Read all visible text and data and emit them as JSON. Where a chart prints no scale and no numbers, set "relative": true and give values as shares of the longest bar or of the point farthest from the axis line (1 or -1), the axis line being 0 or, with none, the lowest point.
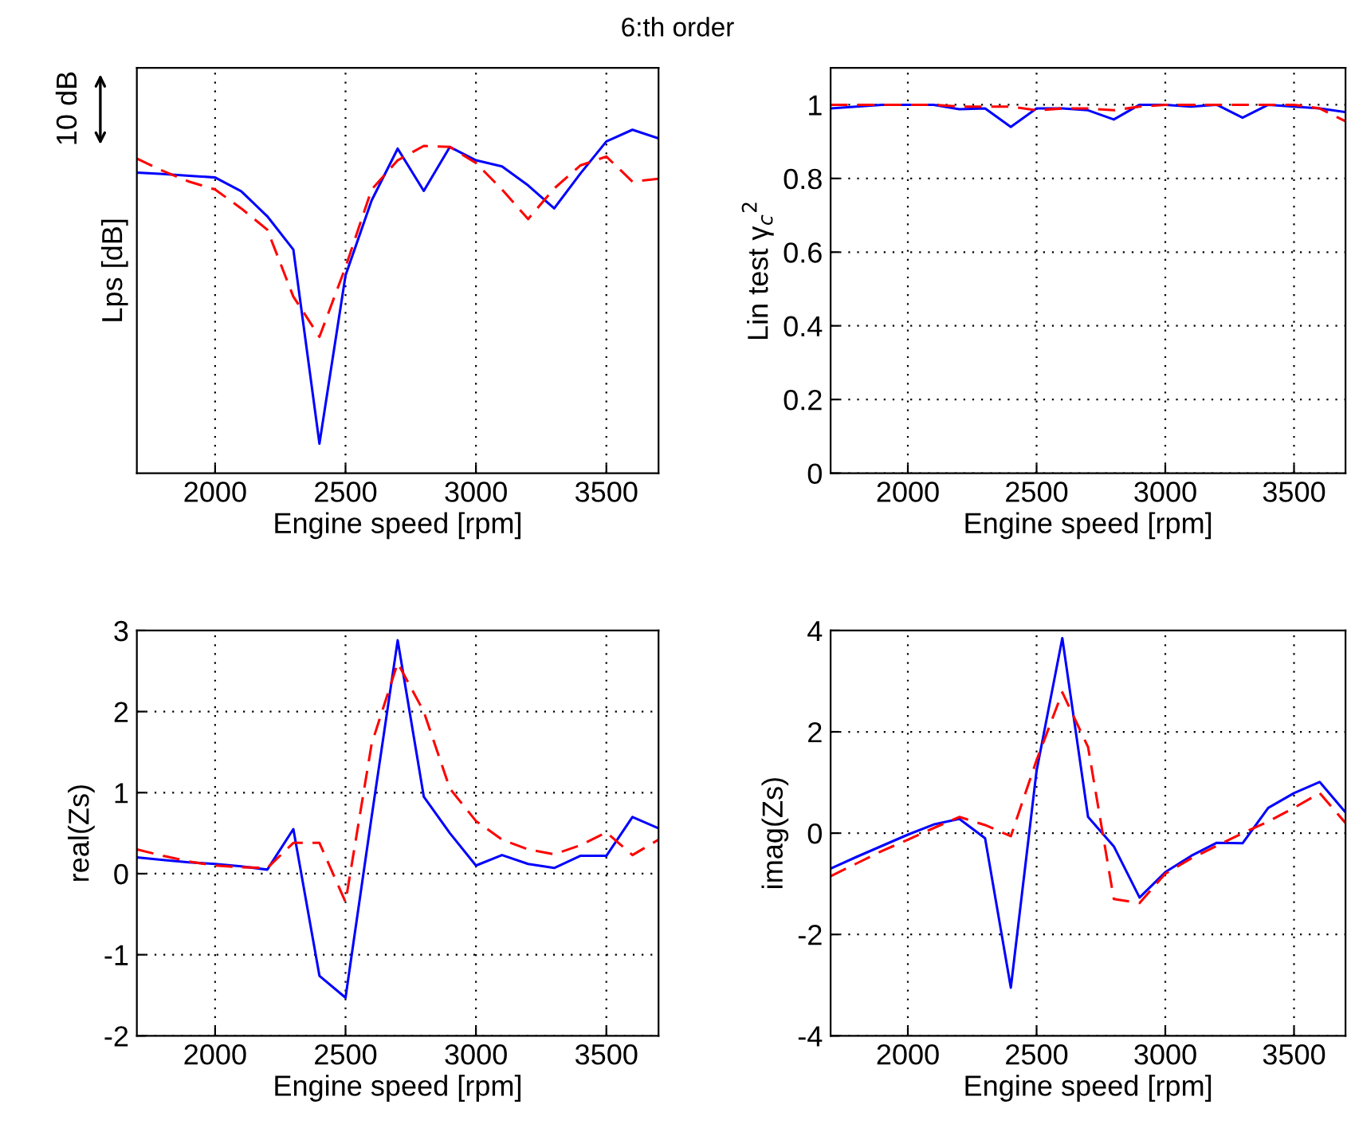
{
  "chart_data": [
    {
      "type": "line",
      "title": "6:th order",
      "relative": true,
      "xlabel": "Engine speed [rpm]",
      "ylabel": "Lps [dB]",
      "annotations": [
        "10 dB"
      ],
      "x": [
        1700,
        1800,
        1900,
        2000,
        2100,
        2200,
        2300,
        2400,
        2500,
        2600,
        2700,
        2800,
        2900,
        3000,
        3100,
        3200,
        3300,
        3400,
        3500,
        3600,
        3700
      ],
      "xlim": [
        1700,
        3700
      ],
      "xticks": [
        2000,
        2500,
        3000,
        3500
      ],
      "grid": "x",
      "series": [
        {
          "color": "#0000ff",
          "line_style": "solid",
          "values": [
            0.875,
            0.871,
            0.866,
            0.861,
            0.821,
            0.748,
            0.651,
            0.086,
            0.576,
            0.794,
            0.945,
            0.822,
            0.95,
            0.911,
            0.893,
            0.838,
            0.771,
            0.872,
            0.966,
            1,
            0.975
          ]
        },
        {
          "color": "#ff0000",
          "line_style": "dashed",
          "values": [
            0.916,
            0.88,
            0.849,
            0.826,
            0.771,
            0.709,
            0.514,
            0.397,
            0.6,
            0.826,
            0.911,
            0.953,
            0.95,
            0.903,
            0.826,
            0.74,
            0.829,
            0.896,
            0.922,
            0.849,
            0.857
          ]
        }
      ]
    },
    {
      "type": "line",
      "xlabel": "Engine speed [rpm]",
      "ylabel": "Lin test γ$_{c}$$^{2}$",
      "x": [
        1700,
        1800,
        1900,
        2000,
        2100,
        2200,
        2300,
        2400,
        2500,
        2600,
        2700,
        2800,
        2900,
        3000,
        3100,
        3200,
        3300,
        3400,
        3500,
        3600,
        3700
      ],
      "xlim": [
        1700,
        3700
      ],
      "xticks": [
        2000,
        2500,
        3000,
        3500
      ],
      "ylim": [
        0,
        1.1
      ],
      "yticks": [
        0,
        0.2,
        0.4,
        0.6,
        0.8,
        1
      ],
      "grid": true,
      "series": [
        {
          "color": "#0000ff",
          "line_style": "solid",
          "values": [
            0.99,
            0.995,
            1,
            1,
            1,
            0.988,
            0.99,
            0.94,
            0.99,
            0.99,
            0.985,
            0.96,
            1,
            1,
            0.995,
            1,
            0.965,
            1,
            0.995,
            0.99,
            0.98
          ]
        },
        {
          "color": "#ff0000",
          "line_style": "dashed",
          "values": [
            1,
            1,
            1,
            1,
            1,
            0.995,
            0.995,
            0.995,
            0.985,
            0.99,
            0.99,
            0.985,
            0.995,
            1,
            1,
            1,
            1,
            1,
            1,
            0.99,
            0.955
          ]
        }
      ]
    },
    {
      "type": "line",
      "xlabel": "Engine speed [rpm]",
      "ylabel": "real(Zs)",
      "x": [
        1700,
        1800,
        1900,
        2000,
        2100,
        2200,
        2300,
        2400,
        2500,
        2600,
        2700,
        2800,
        2900,
        3000,
        3100,
        3200,
        3300,
        3400,
        3500,
        3600,
        3700
      ],
      "xlim": [
        1700,
        3700
      ],
      "xticks": [
        2000,
        2500,
        3000,
        3500
      ],
      "ylim": [
        -2,
        3
      ],
      "yticks": [
        -2,
        -1,
        0,
        1,
        2,
        3
      ],
      "grid": true,
      "series": [
        {
          "color": "#0000ff",
          "line_style": "solid",
          "values": [
            0.2,
            0.17,
            0.14,
            0.12,
            0.09,
            0.05,
            0.55,
            -1.26,
            -1.53,
            0.7,
            2.88,
            0.95,
            0.5,
            0.1,
            0.23,
            0.12,
            0.07,
            0.22,
            0.22,
            0.7,
            0.56
          ]
        },
        {
          "color": "#ff0000",
          "line_style": "dashed",
          "values": [
            0.3,
            0.22,
            0.15,
            0.1,
            0.08,
            0.07,
            0.38,
            0.38,
            -0.35,
            1.6,
            2.6,
            2.0,
            1.05,
            0.65,
            0.42,
            0.3,
            0.24,
            0.35,
            0.51,
            0.23,
            0.42
          ]
        }
      ]
    },
    {
      "type": "line",
      "xlabel": "Engine speed [rpm]",
      "ylabel": "imag(Zs)",
      "x": [
        1700,
        1800,
        1900,
        2000,
        2100,
        2200,
        2300,
        2400,
        2500,
        2600,
        2700,
        2800,
        2900,
        3000,
        3100,
        3200,
        3300,
        3400,
        3500,
        3600,
        3700
      ],
      "xlim": [
        1700,
        3700
      ],
      "xticks": [
        2000,
        2500,
        3000,
        3500
      ],
      "ylim": [
        -4,
        4
      ],
      "yticks": [
        -4,
        -2,
        0,
        2,
        4
      ],
      "grid": true,
      "series": [
        {
          "color": "#0000ff",
          "line_style": "solid",
          "values": [
            -0.7,
            -0.47,
            -0.25,
            -0.03,
            0.17,
            0.28,
            -0.1,
            -3.05,
            1.23,
            3.85,
            0.32,
            -0.26,
            -1.27,
            -0.77,
            -0.45,
            -0.19,
            -0.2,
            0.5,
            0.79,
            1.01,
            0.41
          ]
        },
        {
          "color": "#ff0000",
          "line_style": "dashed",
          "values": [
            -0.85,
            -0.6,
            -0.35,
            -0.13,
            0.1,
            0.32,
            0.16,
            -0.06,
            1.44,
            2.78,
            1.7,
            -1.3,
            -1.38,
            -0.8,
            -0.5,
            -0.25,
            0,
            0.23,
            0.5,
            0.79,
            0.2
          ]
        }
      ]
    }
  ]
}
